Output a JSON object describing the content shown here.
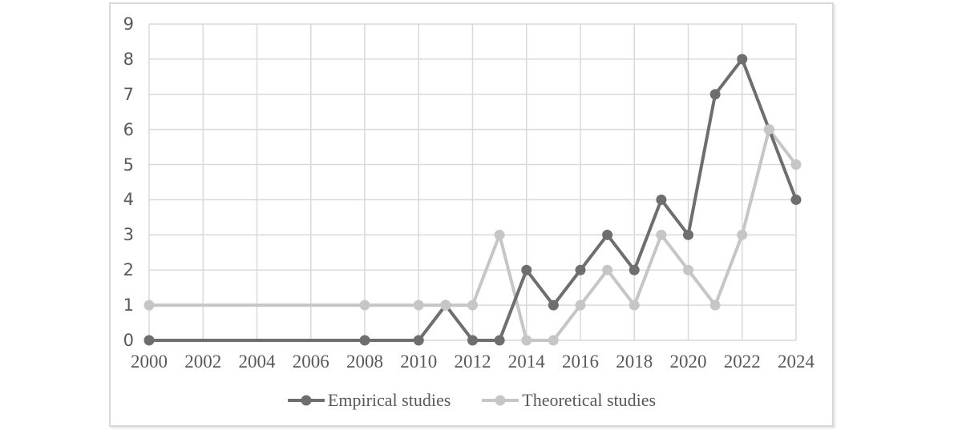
{
  "figure": {
    "background": "#ffffff",
    "border_color": "#d9d9d9"
  },
  "chart_data": {
    "type": "line",
    "x": [
      2000,
      2008,
      2010,
      2011,
      2012,
      2013,
      2014,
      2015,
      2016,
      2017,
      2018,
      2019,
      2020,
      2021,
      2022,
      2023,
      2024
    ],
    "series": [
      {
        "name": "Empirical studies",
        "color": "#6e6e6e",
        "values": [
          0,
          0,
          0,
          1,
          0,
          0,
          2,
          1,
          2,
          3,
          2,
          4,
          3,
          7,
          8,
          6,
          4
        ]
      },
      {
        "name": "Theoretical studies",
        "color": "#c6c6c6",
        "values": [
          1,
          1,
          1,
          1,
          1,
          3,
          0,
          0,
          1,
          2,
          1,
          3,
          2,
          1,
          3,
          6,
          5
        ]
      }
    ],
    "x_ticks": [
      2000,
      2002,
      2004,
      2006,
      2008,
      2010,
      2012,
      2014,
      2016,
      2018,
      2020,
      2022,
      2024
    ],
    "x_tick_labels": [
      "2000",
      "2002",
      "2004",
      "2006",
      "2008",
      "2010",
      "2012",
      "2014",
      "2016",
      "2018",
      "2020",
      "2022",
      "2024"
    ],
    "y_ticks": [
      0,
      1,
      2,
      3,
      4,
      5,
      6,
      7,
      8,
      9
    ],
    "y_tick_labels": [
      "0",
      "1",
      "2",
      "3",
      "4",
      "5",
      "6",
      "7",
      "8",
      "9"
    ],
    "xlim": [
      2000,
      2024
    ],
    "ylim": [
      0,
      9
    ],
    "grid": true,
    "gridline_color": "#d9d9d9",
    "axis_text_color": "#595959",
    "legend_position": "bottom",
    "legend": [
      "Empirical studies",
      "Theoretical studies"
    ]
  }
}
